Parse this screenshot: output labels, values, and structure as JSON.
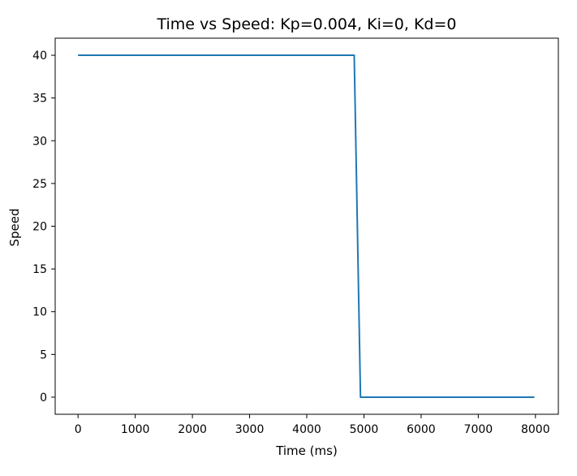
{
  "chart_data": {
    "type": "line",
    "title": "Time vs Speed: Kp=0.004, Ki=0, Kd=0",
    "xlabel": "Time (ms)",
    "ylabel": "Speed",
    "xlim": [
      -400,
      8400
    ],
    "ylim": [
      -2,
      42
    ],
    "xticks": [
      0,
      1000,
      2000,
      3000,
      4000,
      5000,
      6000,
      7000,
      8000
    ],
    "yticks": [
      0,
      5,
      10,
      15,
      20,
      25,
      30,
      35,
      40
    ],
    "grid": false,
    "legend": "none",
    "series": [
      {
        "color": "#1f77b4",
        "x": [
          0,
          4830,
          4940,
          7980
        ],
        "y": [
          40,
          40,
          0,
          0
        ]
      }
    ]
  }
}
